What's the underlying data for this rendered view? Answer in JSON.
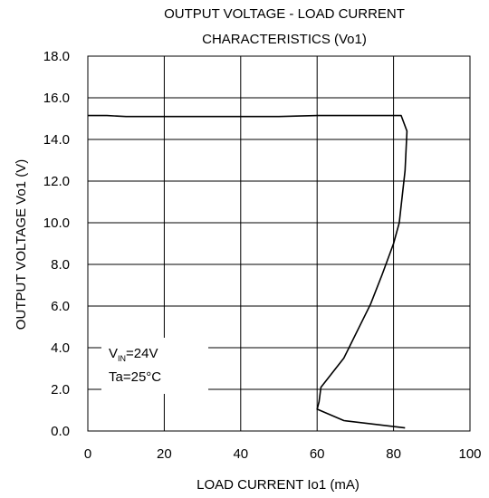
{
  "chart_data": {
    "type": "line",
    "title_line1": "OUTPUT VOLTAGE  -  LOAD CURRENT",
    "title_line2": "CHARACTERISTICS (Vo1)",
    "xlabel": "LOAD CURRENT Io1 (mA)",
    "ylabel": "OUTPUT  VOLTAGE  Vo1 (V)",
    "xlim": [
      0,
      100
    ],
    "ylim": [
      0,
      18
    ],
    "x_ticks": [
      0,
      20,
      40,
      60,
      80,
      100
    ],
    "x_tick_labels": [
      "0",
      "20",
      "40",
      "60",
      "80",
      "100"
    ],
    "y_ticks": [
      0,
      2,
      4,
      6,
      8,
      10,
      12,
      14,
      16,
      18
    ],
    "y_tick_labels": [
      "0.0",
      "2.0",
      "4.0",
      "6.0",
      "8.0",
      "10.0",
      "12.0",
      "14.0",
      "16.0",
      "18.0"
    ],
    "grid": true,
    "annotation": {
      "vin_main": "V",
      "vin_sub": "IN",
      "vin_value": "=24V",
      "ta": "Ta=25°C"
    },
    "series": [
      {
        "points": [
          [
            0,
            15.15
          ],
          [
            5,
            15.15
          ],
          [
            10,
            15.1
          ],
          [
            20,
            15.1
          ],
          [
            30,
            15.1
          ],
          [
            40,
            15.1
          ],
          [
            50,
            15.1
          ],
          [
            60,
            15.15
          ],
          [
            70,
            15.15
          ],
          [
            82,
            15.15
          ],
          [
            83.5,
            14.4
          ],
          [
            83,
            12.5
          ],
          [
            81.5,
            10.0
          ],
          [
            80,
            9.0
          ],
          [
            77,
            7.5
          ],
          [
            74,
            6.1
          ],
          [
            67,
            3.5
          ],
          [
            61,
            2.1
          ],
          [
            60.5,
            1.4
          ],
          [
            60,
            1.05
          ],
          [
            67,
            0.5
          ],
          [
            83,
            0.15
          ]
        ],
        "color": "#000000"
      }
    ]
  }
}
